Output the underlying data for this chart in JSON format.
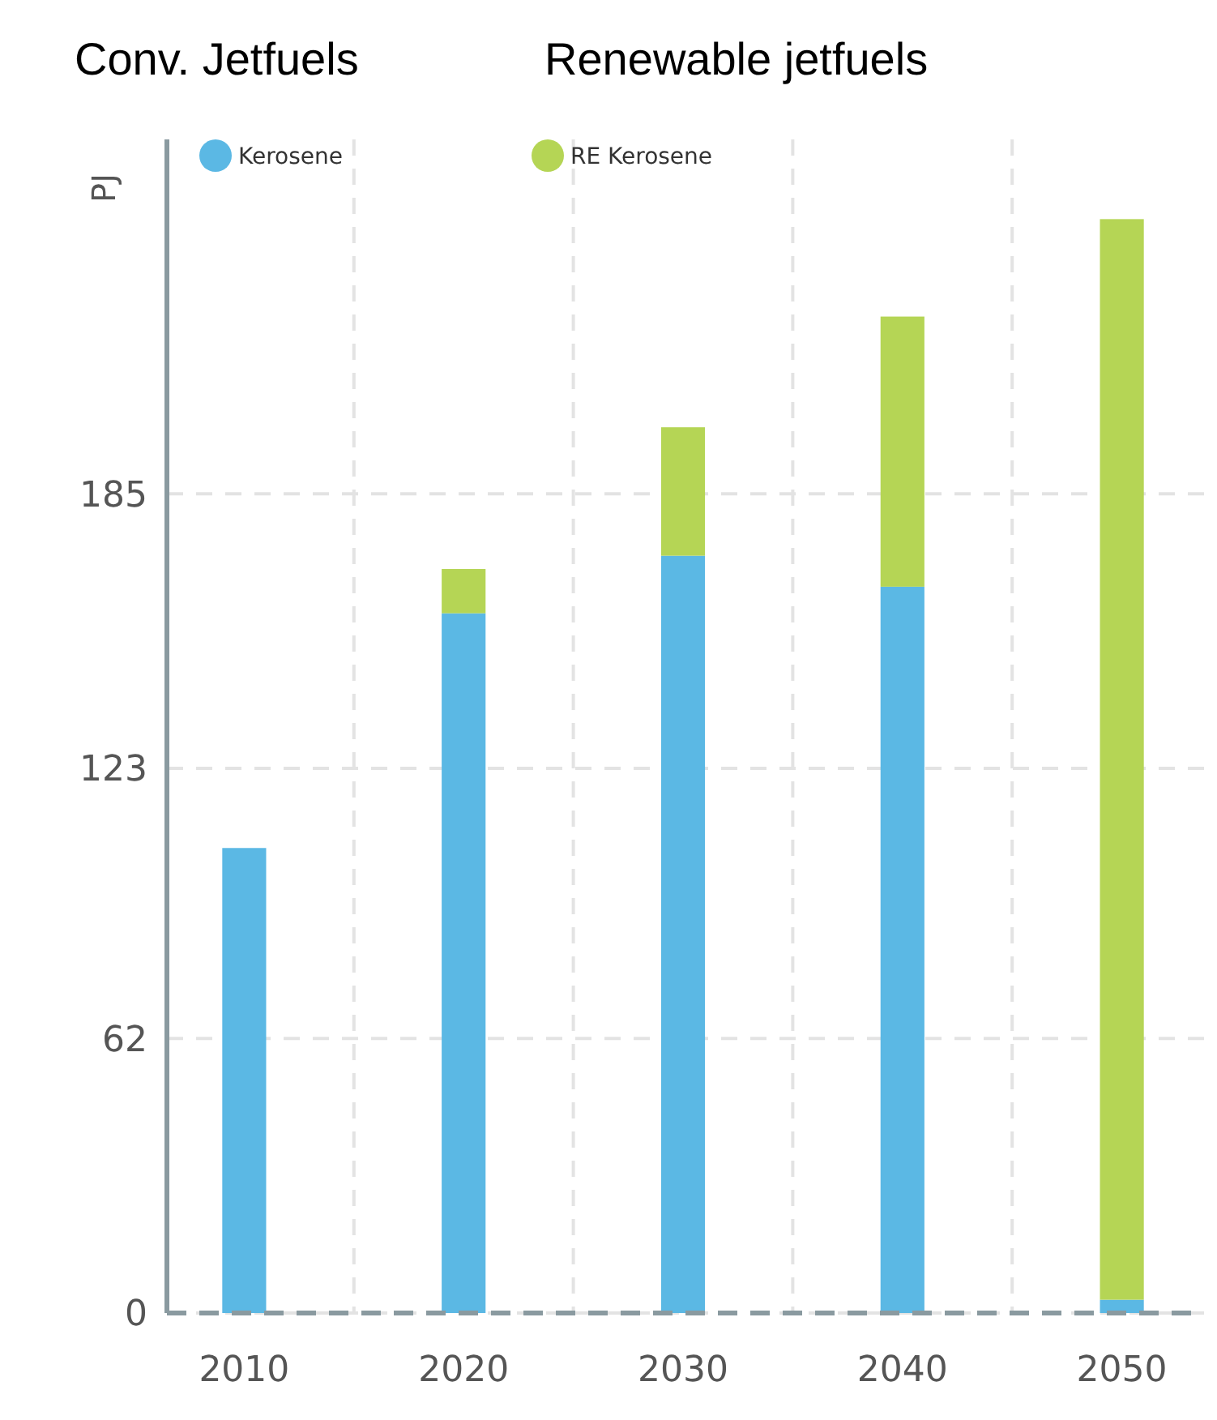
{
  "chart_data": {
    "type": "bar",
    "stacked": true,
    "ylabel": "PJ",
    "categories": [
      "2010",
      "2020",
      "2030",
      "2040",
      "2050"
    ],
    "series": [
      {
        "name": "Kerosene",
        "color": "#5bb8e4",
        "values": [
          105,
          158,
          171,
          164,
          3
        ]
      },
      {
        "name": "RE Kerosene",
        "color": "#b5d555",
        "values": [
          0,
          10,
          29,
          61,
          244
        ]
      }
    ],
    "ylim": [
      0,
      265
    ],
    "yticks": [
      0,
      62,
      123,
      185
    ],
    "grid": true,
    "legend": "top left",
    "annotations": [
      "Conv. Jetfuels",
      "Renewable jetfuels"
    ]
  }
}
